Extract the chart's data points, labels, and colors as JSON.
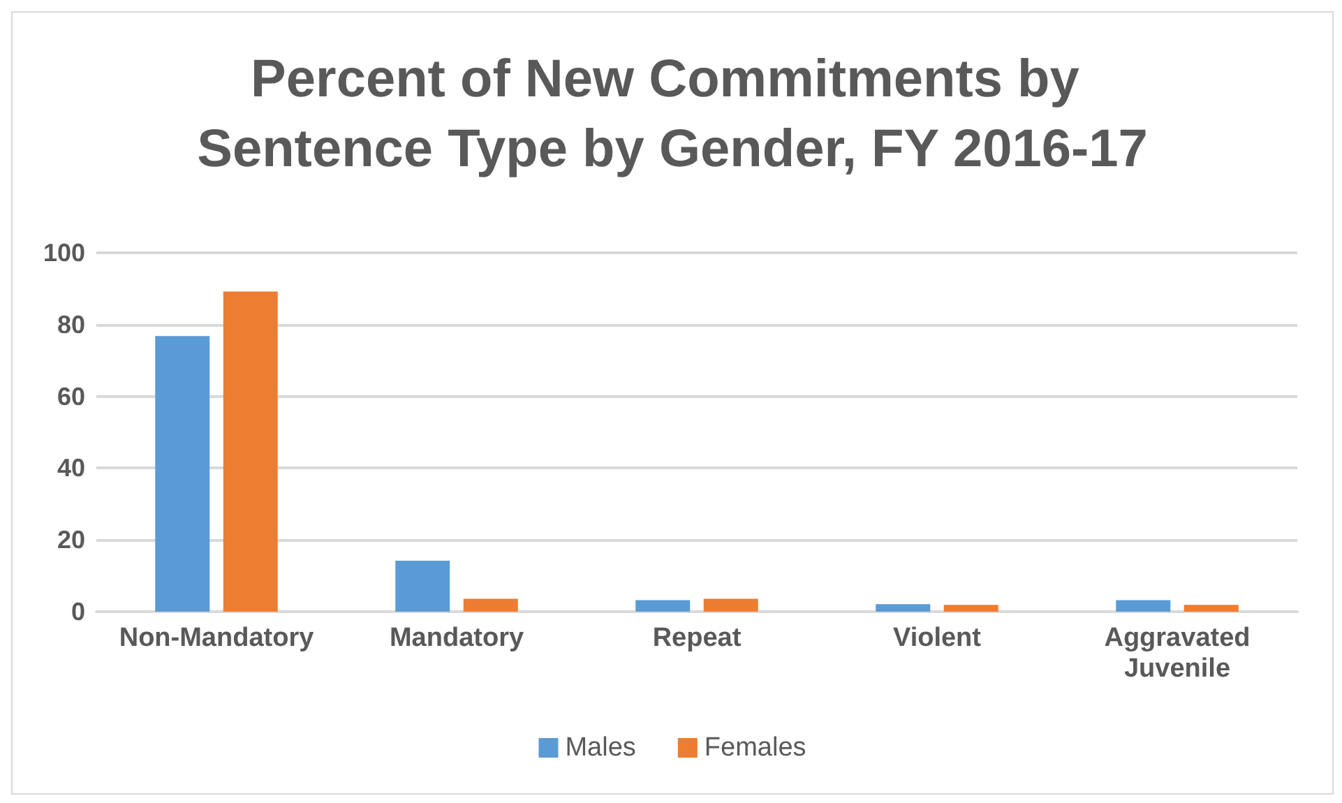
{
  "chart_data": {
    "type": "bar",
    "title": "Percent of New Commitments by Sentence Type by Gender, FY 2016-17",
    "categories": [
      "Non-Mandatory",
      "Mandatory",
      "Repeat",
      "Violent",
      "Aggravated Juvenile"
    ],
    "series": [
      {
        "name": "Males",
        "color": "#5b9bd5",
        "values": [
          76.8,
          14.2,
          3.2,
          2.1,
          3.2
        ]
      },
      {
        "name": "Females",
        "color": "#ed7d31",
        "values": [
          89.2,
          3.6,
          3.6,
          1.9,
          1.9
        ]
      }
    ],
    "ylim": [
      0,
      100
    ],
    "yticks": [
      0,
      20,
      40,
      60,
      80,
      100
    ],
    "grid": "y",
    "legend": "bottom"
  }
}
